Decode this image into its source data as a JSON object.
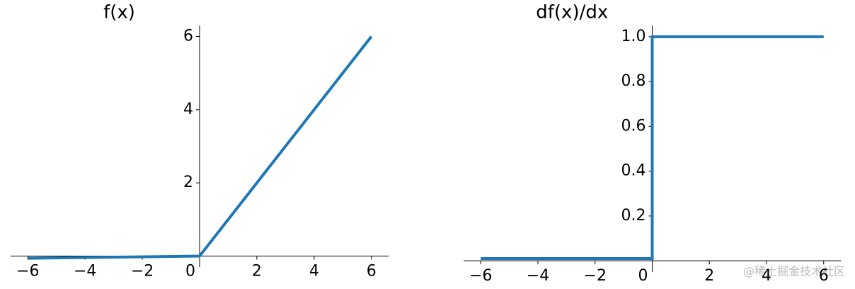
{
  "chart_data": [
    {
      "type": "line",
      "title": "f(x)",
      "x": [
        -6,
        0,
        6
      ],
      "series": [
        {
          "color": "#1f77b4",
          "values": [
            -0.06,
            0,
            6
          ]
        }
      ],
      "xlim": [
        -6.6,
        6.6
      ],
      "ylim": [
        -0.3,
        6.3
      ],
      "xticks": [
        {
          "value": -6,
          "label": "−6"
        },
        {
          "value": -4,
          "label": "−4"
        },
        {
          "value": -2,
          "label": "−2"
        },
        0,
        2,
        4,
        6
      ],
      "yticks": [
        2,
        4,
        6
      ]
    },
    {
      "type": "line",
      "title": "df(x)/dx",
      "x": [
        -6,
        0,
        0,
        6
      ],
      "series": [
        {
          "color": "#1f77b4",
          "values": [
            0.01,
            0.01,
            1,
            1
          ]
        }
      ],
      "xlim": [
        -6.6,
        6.6
      ],
      "ylim": [
        -0.05,
        1.05
      ],
      "xticks": [
        {
          "value": -6,
          "label": "−6"
        },
        {
          "value": -4,
          "label": "−4"
        },
        {
          "value": -2,
          "label": "−2"
        },
        0,
        2,
        4,
        6
      ],
      "yticks": [
        0.2,
        0.4,
        0.6,
        0.8,
        {
          "value": 1,
          "label": "1.0"
        }
      ]
    }
  ],
  "watermark": "@稀土掘金技术社区"
}
